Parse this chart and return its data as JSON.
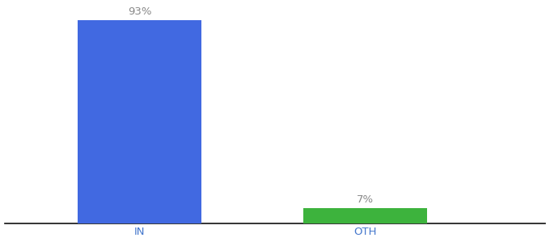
{
  "categories": [
    "IN",
    "OTH"
  ],
  "values": [
    93,
    7
  ],
  "bar_colors": [
    "#4169e1",
    "#3db33d"
  ],
  "value_labels": [
    "93%",
    "7%"
  ],
  "background_color": "#ffffff",
  "ylim": [
    0,
    100
  ],
  "bar_width": 0.55,
  "label_fontsize": 9.5,
  "tick_fontsize": 9.5
}
